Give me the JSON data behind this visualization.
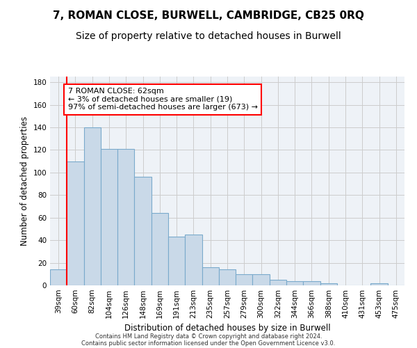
{
  "title": "7, ROMAN CLOSE, BURWELL, CAMBRIDGE, CB25 0RQ",
  "subtitle": "Size of property relative to detached houses in Burwell",
  "xlabel": "Distribution of detached houses by size in Burwell",
  "ylabel": "Number of detached properties",
  "footnote1": "Contains HM Land Registry data © Crown copyright and database right 2024.",
  "footnote2": "Contains public sector information licensed under the Open Government Licence v3.0.",
  "categories": [
    "39sqm",
    "60sqm",
    "82sqm",
    "104sqm",
    "126sqm",
    "148sqm",
    "169sqm",
    "191sqm",
    "213sqm",
    "235sqm",
    "257sqm",
    "279sqm",
    "300sqm",
    "322sqm",
    "344sqm",
    "366sqm",
    "388sqm",
    "410sqm",
    "431sqm",
    "453sqm",
    "475sqm"
  ],
  "values": [
    14,
    110,
    140,
    121,
    121,
    96,
    64,
    43,
    45,
    16,
    14,
    10,
    10,
    5,
    4,
    4,
    2,
    0,
    0,
    2,
    0
  ],
  "bar_color": "#c9d9e8",
  "bar_edge_color": "#7aaacc",
  "annotation_text": "7 ROMAN CLOSE: 62sqm\n← 3% of detached houses are smaller (19)\n97% of semi-detached houses are larger (673) →",
  "annotation_box_color": "white",
  "annotation_box_edge_color": "red",
  "red_line_color": "red",
  "ylim": [
    0,
    185
  ],
  "yticks": [
    0,
    20,
    40,
    60,
    80,
    100,
    120,
    140,
    160,
    180
  ],
  "grid_color": "#cccccc",
  "bg_color": "#eef2f7",
  "title_fontsize": 11,
  "subtitle_fontsize": 10,
  "axis_label_fontsize": 8.5,
  "tick_fontsize": 7.5,
  "annotation_fontsize": 8,
  "footnote_fontsize": 6
}
